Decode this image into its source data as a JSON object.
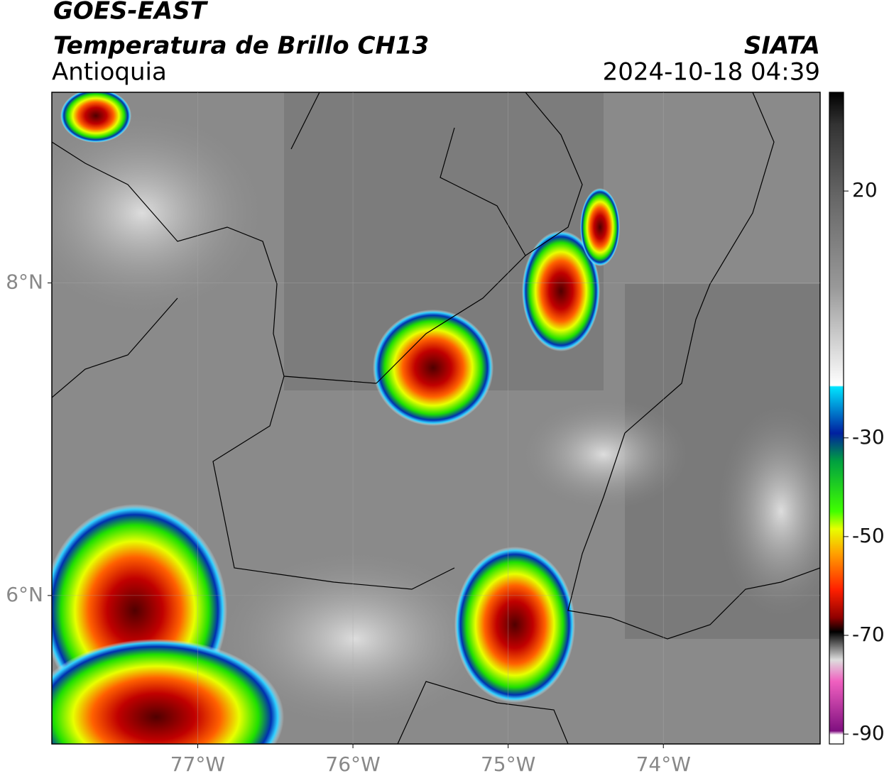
{
  "header": {
    "title": "GOES-EAST",
    "subtitle": "Temperatura de Brillo CH13",
    "region": "Antioquia",
    "source": "SIATA",
    "datetime": "2024-10-18 04:39"
  },
  "map": {
    "xlim": [
      -77.94,
      -72.99
    ],
    "ylim": [
      5.05,
      9.22
    ],
    "xticks": [
      {
        "value": -77,
        "label": "77°W"
      },
      {
        "value": -76,
        "label": "76°W"
      },
      {
        "value": -75,
        "label": "75°W"
      },
      {
        "value": -74,
        "label": "74°W"
      }
    ],
    "yticks": [
      {
        "value": 8,
        "label": "8°N"
      },
      {
        "value": 6,
        "label": "6°N"
      }
    ],
    "grid": true
  },
  "colorbar": {
    "lim": [
      -92,
      40
    ],
    "ticks": [
      20,
      -30,
      -50,
      -70,
      -90
    ]
  }
}
